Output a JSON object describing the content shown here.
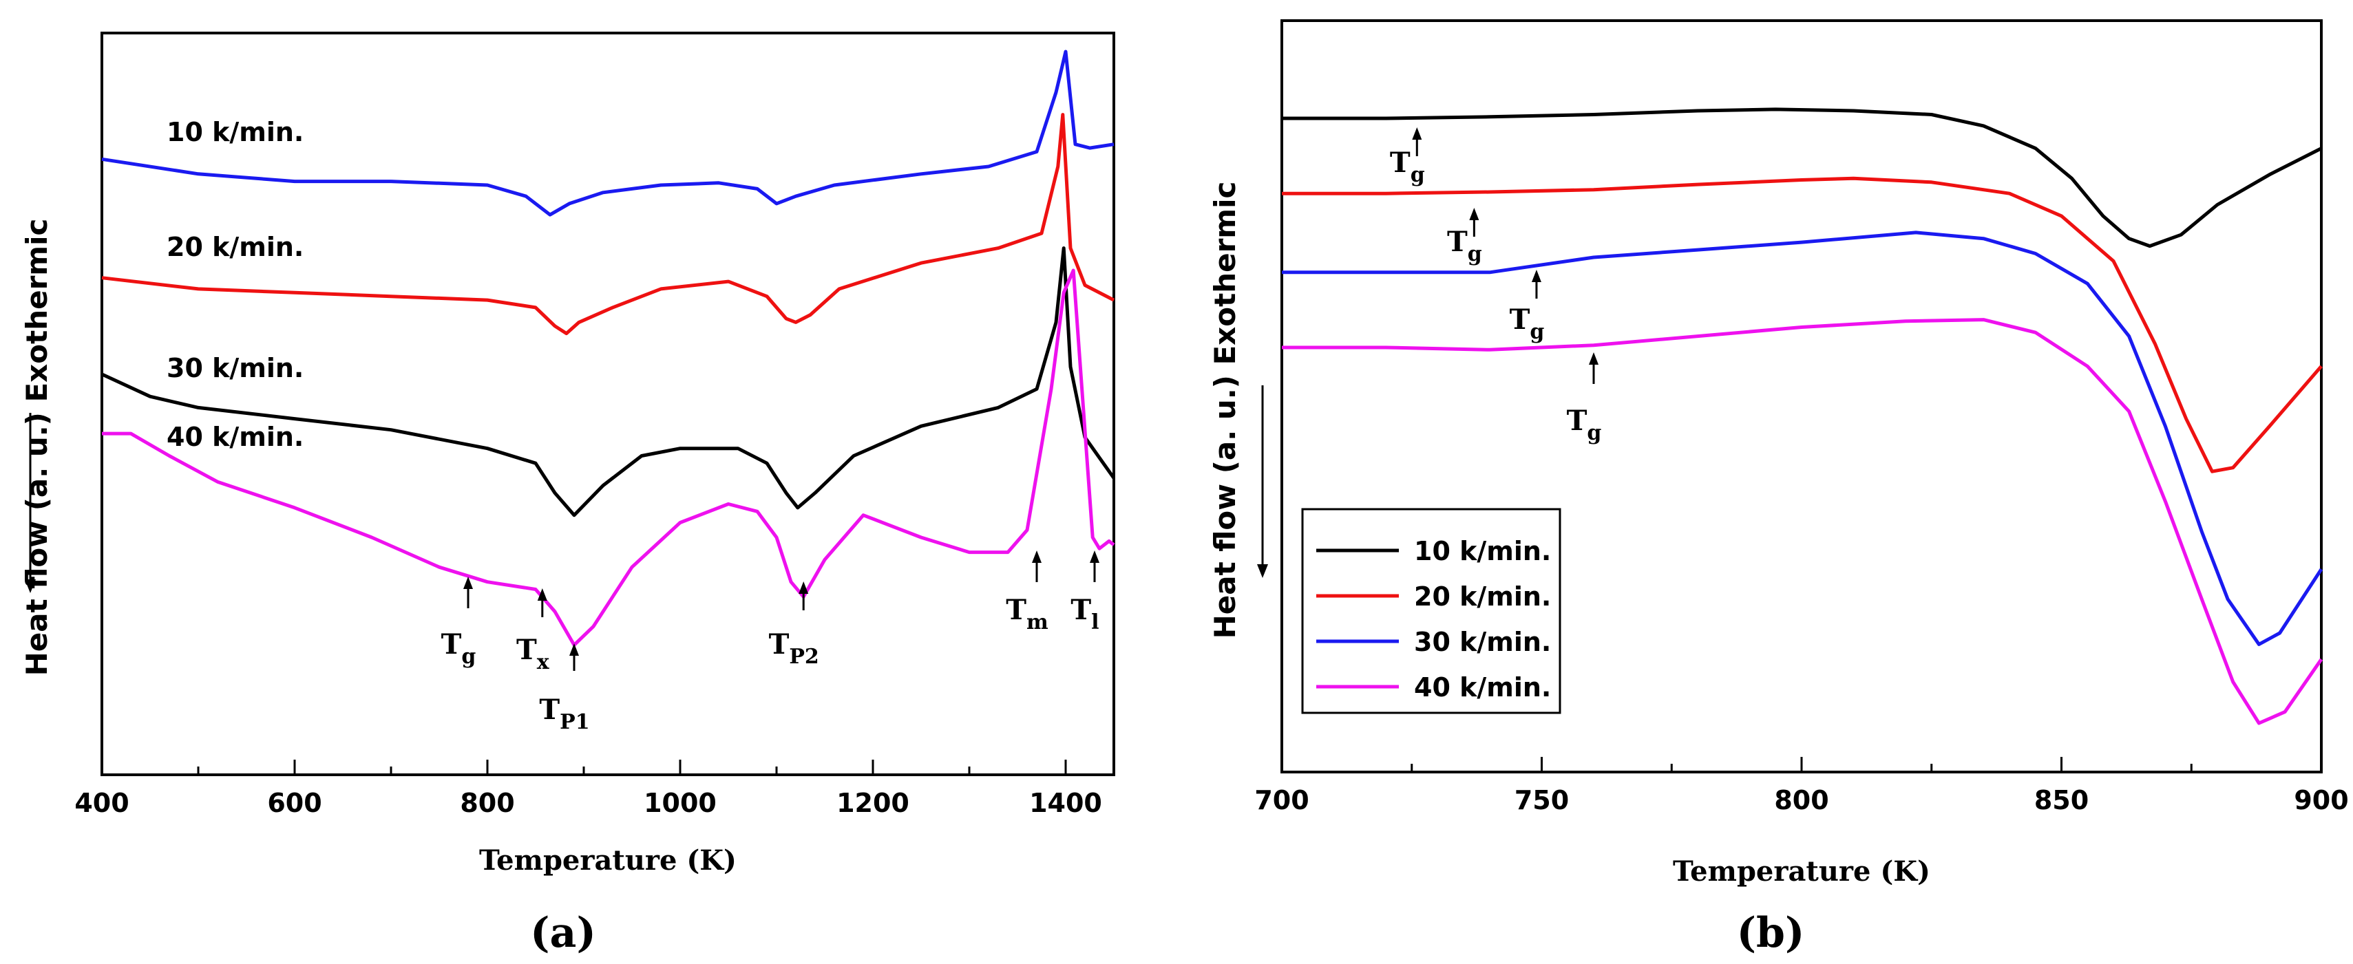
{
  "chart_data": [
    {
      "type": "line",
      "panel_label": "(a)",
      "xlabel": "Temperature (K)",
      "ylabel": "Heat flow (a. u.) Exothermic",
      "xlim": [
        400,
        1450
      ],
      "ylim": [
        0,
        10
      ],
      "x_ticks": [
        400,
        600,
        800,
        1000,
        1200,
        1400
      ],
      "series": [
        {
          "name": "10 k/min.",
          "color": "#1a1af0",
          "points": [
            [
              400,
              8.3
            ],
            [
              500,
              8.1
            ],
            [
              600,
              8.0
            ],
            [
              700,
              8.0
            ],
            [
              800,
              7.95
            ],
            [
              840,
              7.8
            ],
            [
              865,
              7.55
            ],
            [
              885,
              7.7
            ],
            [
              920,
              7.85
            ],
            [
              980,
              7.95
            ],
            [
              1040,
              7.98
            ],
            [
              1080,
              7.9
            ],
            [
              1100,
              7.7
            ],
            [
              1120,
              7.8
            ],
            [
              1160,
              7.95
            ],
            [
              1250,
              8.1
            ],
            [
              1320,
              8.2
            ],
            [
              1370,
              8.4
            ],
            [
              1390,
              9.2
            ],
            [
              1400,
              9.75
            ],
            [
              1410,
              8.5
            ],
            [
              1425,
              8.45
            ],
            [
              1450,
              8.5
            ]
          ]
        },
        {
          "name": "20 k/min.",
          "color": "#ee1111",
          "points": [
            [
              400,
              6.7
            ],
            [
              500,
              6.55
            ],
            [
              600,
              6.5
            ],
            [
              700,
              6.45
            ],
            [
              800,
              6.4
            ],
            [
              850,
              6.3
            ],
            [
              870,
              6.05
            ],
            [
              882,
              5.95
            ],
            [
              895,
              6.1
            ],
            [
              930,
              6.3
            ],
            [
              980,
              6.55
            ],
            [
              1050,
              6.65
            ],
            [
              1090,
              6.45
            ],
            [
              1110,
              6.15
            ],
            [
              1120,
              6.1
            ],
            [
              1135,
              6.2
            ],
            [
              1165,
              6.55
            ],
            [
              1250,
              6.9
            ],
            [
              1330,
              7.1
            ],
            [
              1375,
              7.3
            ],
            [
              1392,
              8.2
            ],
            [
              1397,
              8.9
            ],
            [
              1405,
              7.1
            ],
            [
              1420,
              6.6
            ],
            [
              1450,
              6.4
            ]
          ]
        },
        {
          "name": "30 k/min.",
          "color": "#000000",
          "points": [
            [
              400,
              5.4
            ],
            [
              450,
              5.1
            ],
            [
              500,
              4.95
            ],
            [
              600,
              4.8
            ],
            [
              700,
              4.65
            ],
            [
              800,
              4.4
            ],
            [
              850,
              4.2
            ],
            [
              870,
              3.8
            ],
            [
              890,
              3.5
            ],
            [
              920,
              3.9
            ],
            [
              960,
              4.3
            ],
            [
              1000,
              4.4
            ],
            [
              1060,
              4.4
            ],
            [
              1090,
              4.2
            ],
            [
              1110,
              3.8
            ],
            [
              1122,
              3.6
            ],
            [
              1140,
              3.8
            ],
            [
              1180,
              4.3
            ],
            [
              1250,
              4.7
            ],
            [
              1330,
              4.95
            ],
            [
              1370,
              5.2
            ],
            [
              1390,
              6.1
            ],
            [
              1398,
              7.1
            ],
            [
              1405,
              5.5
            ],
            [
              1420,
              4.55
            ],
            [
              1450,
              4.0
            ]
          ]
        },
        {
          "name": "40 k/min.",
          "color": "#ee11ee",
          "points": [
            [
              400,
              4.6
            ],
            [
              430,
              4.6
            ],
            [
              470,
              4.3
            ],
            [
              520,
              3.95
            ],
            [
              600,
              3.6
            ],
            [
              680,
              3.2
            ],
            [
              750,
              2.8
            ],
            [
              800,
              2.6
            ],
            [
              850,
              2.5
            ],
            [
              870,
              2.2
            ],
            [
              890,
              1.75
            ],
            [
              910,
              2.0
            ],
            [
              950,
              2.8
            ],
            [
              1000,
              3.4
            ],
            [
              1050,
              3.65
            ],
            [
              1080,
              3.55
            ],
            [
              1100,
              3.2
            ],
            [
              1115,
              2.6
            ],
            [
              1128,
              2.4
            ],
            [
              1150,
              2.9
            ],
            [
              1190,
              3.5
            ],
            [
              1250,
              3.2
            ],
            [
              1300,
              3.0
            ],
            [
              1340,
              3.0
            ],
            [
              1360,
              3.3
            ],
            [
              1385,
              5.2
            ],
            [
              1398,
              6.5
            ],
            [
              1408,
              6.8
            ],
            [
              1418,
              5.0
            ],
            [
              1428,
              3.2
            ],
            [
              1435,
              3.05
            ],
            [
              1445,
              3.15
            ],
            [
              1450,
              3.1
            ]
          ]
        }
      ],
      "series_labels": [
        "10 k/min.",
        "20 k/min.",
        "30 k/min.",
        "40 k/min."
      ],
      "annotations": [
        {
          "main": "T",
          "sub": "g",
          "x": 780
        },
        {
          "main": "T",
          "sub": "x",
          "x": 857
        },
        {
          "main": "T",
          "sub": "P1",
          "x": 890
        },
        {
          "main": "T",
          "sub": "P2",
          "x": 1128
        },
        {
          "main": "T",
          "sub": "m",
          "x": 1370
        },
        {
          "main": "T",
          "sub": "l",
          "x": 1430
        }
      ]
    },
    {
      "type": "line",
      "panel_label": "(b)",
      "xlabel": "Temperature (K)",
      "ylabel": "Heat flow (a. u.) Exothermic",
      "xlim": [
        700,
        900
      ],
      "ylim": [
        0,
        10
      ],
      "x_ticks": [
        700,
        750,
        800,
        850,
        900
      ],
      "legend_position": "bottom-left",
      "series": [
        {
          "name": "10 k/min.",
          "color": "#000000",
          "points": [
            [
              700,
              8.7
            ],
            [
              720,
              8.7
            ],
            [
              740,
              8.72
            ],
            [
              760,
              8.75
            ],
            [
              780,
              8.8
            ],
            [
              795,
              8.82
            ],
            [
              810,
              8.8
            ],
            [
              825,
              8.75
            ],
            [
              835,
              8.6
            ],
            [
              845,
              8.3
            ],
            [
              852,
              7.9
            ],
            [
              858,
              7.4
            ],
            [
              863,
              7.1
            ],
            [
              867,
              7.0
            ],
            [
              873,
              7.15
            ],
            [
              880,
              7.55
            ],
            [
              890,
              7.95
            ],
            [
              900,
              8.3
            ]
          ]
        },
        {
          "name": "20 k/min.",
          "color": "#ee1111",
          "points": [
            [
              700,
              7.7
            ],
            [
              720,
              7.7
            ],
            [
              740,
              7.72
            ],
            [
              760,
              7.75
            ],
            [
              780,
              7.82
            ],
            [
              800,
              7.88
            ],
            [
              810,
              7.9
            ],
            [
              825,
              7.85
            ],
            [
              840,
              7.7
            ],
            [
              850,
              7.4
            ],
            [
              860,
              6.8
            ],
            [
              868,
              5.7
            ],
            [
              874,
              4.7
            ],
            [
              879,
              4.0
            ],
            [
              883,
              4.05
            ],
            [
              890,
              4.6
            ],
            [
              900,
              5.4
            ]
          ]
        },
        {
          "name": "30 k/min.",
          "color": "#1a1af0",
          "points": [
            [
              700,
              6.65
            ],
            [
              720,
              6.65
            ],
            [
              740,
              6.65
            ],
            [
              760,
              6.85
            ],
            [
              780,
              6.95
            ],
            [
              800,
              7.05
            ],
            [
              822,
              7.18
            ],
            [
              835,
              7.1
            ],
            [
              845,
              6.9
            ],
            [
              855,
              6.5
            ],
            [
              863,
              5.8
            ],
            [
              870,
              4.6
            ],
            [
              877,
              3.2
            ],
            [
              882,
              2.3
            ],
            [
              888,
              1.7
            ],
            [
              892,
              1.85
            ],
            [
              900,
              2.7
            ]
          ]
        },
        {
          "name": "40 k/min.",
          "color": "#ee11ee",
          "points": [
            [
              700,
              5.65
            ],
            [
              720,
              5.65
            ],
            [
              740,
              5.62
            ],
            [
              760,
              5.68
            ],
            [
              780,
              5.8
            ],
            [
              800,
              5.92
            ],
            [
              820,
              6.0
            ],
            [
              835,
              6.02
            ],
            [
              845,
              5.85
            ],
            [
              855,
              5.4
            ],
            [
              863,
              4.8
            ],
            [
              870,
              3.6
            ],
            [
              877,
              2.3
            ],
            [
              883,
              1.2
            ],
            [
              888,
              0.65
            ],
            [
              893,
              0.8
            ],
            [
              900,
              1.5
            ]
          ]
        }
      ],
      "annotations": [
        {
          "main": "T",
          "sub": "g",
          "x": 726
        },
        {
          "main": "T",
          "sub": "g",
          "x": 737
        },
        {
          "main": "T",
          "sub": "g",
          "x": 749
        },
        {
          "main": "T",
          "sub": "g",
          "x": 760
        }
      ]
    }
  ]
}
